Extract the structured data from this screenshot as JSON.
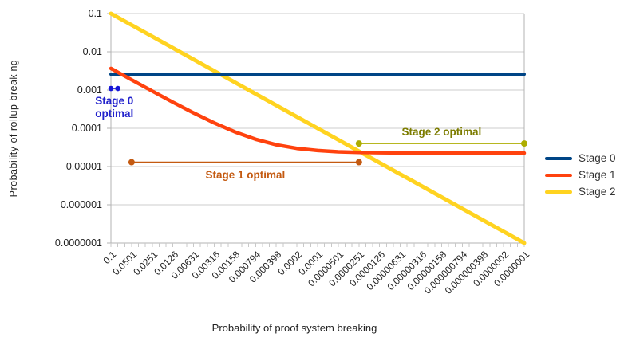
{
  "figure": {
    "y_axis_title": "Probability of rollup breaking",
    "x_axis_title": "Probability of proof system breaking"
  },
  "legend": {
    "items": [
      {
        "label": "Stage 0",
        "color": "#004586"
      },
      {
        "label": "Stage 1",
        "color": "#FF420E"
      },
      {
        "label": "Stage 2",
        "color": "#FFD320"
      }
    ]
  },
  "chart_data": {
    "type": "line",
    "x_scale": "log",
    "y_scale": "log",
    "xlabel": "Probability of proof system breaking",
    "ylabel": "Probability of rollup breaking",
    "x_range": [
      0.1,
      1e-07
    ],
    "y_range": [
      0.1,
      1e-07
    ],
    "grid": "horizontal",
    "legend_position": "right",
    "x_tick_labels": [
      "0.1",
      "0.0501",
      "0.0251",
      "0.0126",
      "0.00631",
      "0.00316",
      "0.00158",
      "0.000794",
      "0.000398",
      "0.0002",
      "0.0001",
      "0.0000501",
      "0.0000251",
      "0.0000126",
      "0.00000631",
      "0.00000316",
      "0.00000158",
      "0.000000794",
      "0.000000398",
      "0.0000002",
      "0.0000001"
    ],
    "y_tick_labels": [
      "0.1",
      "0.01",
      "0.001",
      "0.0001",
      "0.00001",
      "0.000001",
      "0.0000001"
    ],
    "series": [
      {
        "name": "Stage 2",
        "color": "#FFD320",
        "stroke_width": 5,
        "points": [
          [
            0.1,
            0.1
          ],
          [
            1e-07,
            1e-07
          ]
        ]
      },
      {
        "name": "Stage 0",
        "color": "#004586",
        "stroke_width": 4,
        "points": [
          [
            0.1,
            0.0026
          ],
          [
            1e-07,
            0.0026
          ]
        ]
      },
      {
        "name": "Stage 1",
        "color": "#FF420E",
        "stroke_width": 4.5,
        "points": [
          [
            0.1,
            0.00367
          ],
          [
            0.0501,
            0.00185
          ],
          [
            0.0251,
            0.00094
          ],
          [
            0.0126,
            0.00048
          ],
          [
            0.00631,
            0.000253
          ],
          [
            0.00316,
            0.000138
          ],
          [
            0.00158,
            8.02e-05
          ],
          [
            0.000794,
            5.15e-05
          ],
          [
            0.000398,
            3.7e-05
          ],
          [
            0.0002,
            2.98e-05
          ],
          [
            0.0001,
            2.62e-05
          ],
          [
            5.01e-05,
            2.43e-05
          ],
          [
            2.51e-05,
            2.34e-05
          ],
          [
            1.26e-05,
            2.3e-05
          ],
          [
            6.31e-06,
            2.27e-05
          ],
          [
            3.16e-06,
            2.26e-05
          ],
          [
            1.58e-06,
            2.26e-05
          ],
          [
            7.94e-07,
            2.25e-05
          ],
          [
            3.98e-07,
            2.25e-05
          ],
          [
            2e-07,
            2.25e-05
          ],
          [
            1e-07,
            2.25e-05
          ]
        ]
      }
    ],
    "annotations": [
      {
        "id": "stage-0-optimal",
        "label": "Stage 0 optimal",
        "label_lines": [
          "Stage 0",
          "optimal"
        ],
        "label_position": "below",
        "text_color": "#2222CC",
        "line_color": "#1515D6",
        "x1": 0.1,
        "x2": 0.0794,
        "y": 0.0011,
        "dot_radius": 3.3
      },
      {
        "id": "stage-1-optimal",
        "label": "Stage 1 optimal",
        "label_lines": [
          "Stage 1 optimal"
        ],
        "label_position": "below",
        "text_color": "#C45A11",
        "line_color": "#C45A11",
        "x1": 0.0501,
        "x2": 2.51e-05,
        "y": 1.3e-05,
        "dot_radius": 4
      },
      {
        "id": "stage-2-optimal",
        "label": "Stage 2 optimal",
        "label_lines": [
          "Stage 2 optimal"
        ],
        "label_position": "above",
        "text_color": "#7C7C00",
        "line_color": "#ADAD00",
        "x1": 2.51e-05,
        "x2": 1e-07,
        "y": 4e-05,
        "dot_radius": 4
      }
    ]
  }
}
